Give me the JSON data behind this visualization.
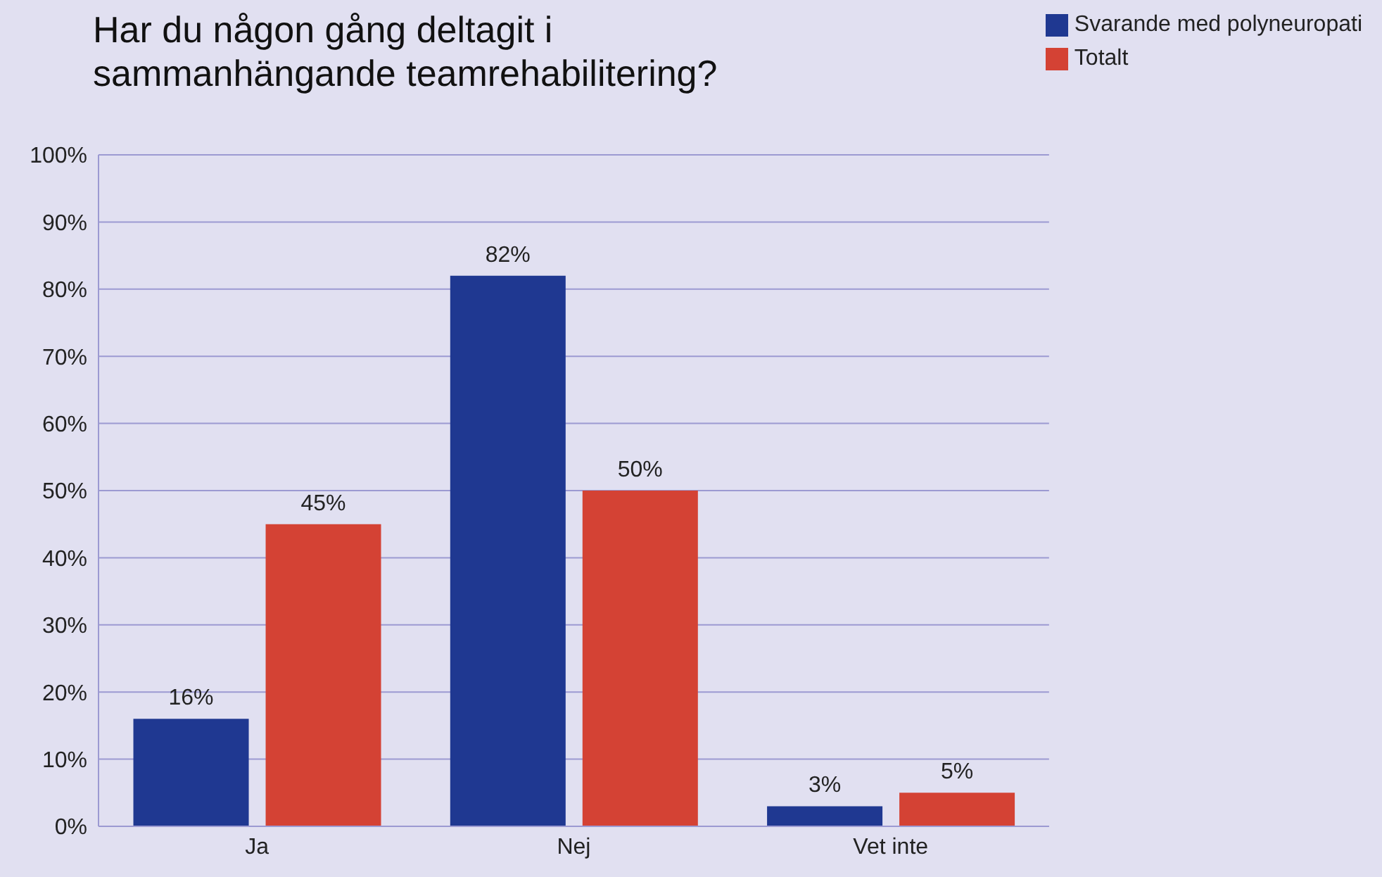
{
  "chart_data": {
    "type": "bar",
    "title": "Har du någon gång deltagit i sammanhängande teamrehabilitering?",
    "categories": [
      "Ja",
      "Nej",
      "Vet inte"
    ],
    "series": [
      {
        "name": "Svarande med polyneuropati",
        "color": "#1f3891",
        "values": [
          16,
          82,
          3
        ],
        "value_labels": [
          "16%",
          "82%",
          "3%"
        ]
      },
      {
        "name": "Totalt",
        "color": "#d44234",
        "values": [
          45,
          50,
          5
        ],
        "value_labels": [
          "45%",
          "50%",
          "5%"
        ]
      }
    ],
    "ylim": [
      0,
      100
    ],
    "yticks": [
      {
        "value": 0,
        "label": "0%"
      },
      {
        "value": 10,
        "label": "10%"
      },
      {
        "value": 20,
        "label": "20%"
      },
      {
        "value": 30,
        "label": "30%"
      },
      {
        "value": 40,
        "label": "40%"
      },
      {
        "value": 50,
        "label": "50%"
      },
      {
        "value": 60,
        "label": "60%"
      },
      {
        "value": 70,
        "label": "70%"
      },
      {
        "value": 80,
        "label": "80%"
      },
      {
        "value": 90,
        "label": "90%"
      },
      {
        "value": 100,
        "label": "100%"
      }
    ],
    "grid": "y",
    "legend": "top right"
  }
}
